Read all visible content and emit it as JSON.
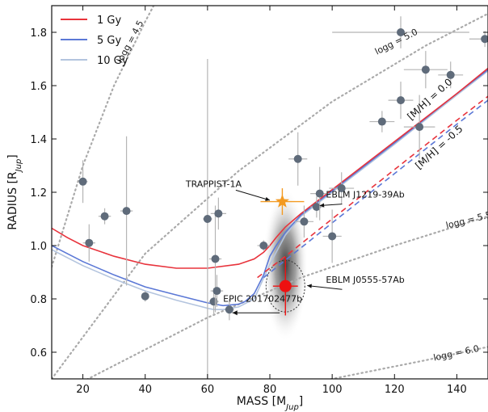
{
  "chart_data": {
    "type": "scatter",
    "xlabel": "MASS [M_Jup]",
    "ylabel": "RADIUS [R_Jup]",
    "xlim": [
      10,
      150
    ],
    "ylim": [
      0.5,
      1.9
    ],
    "xticks": [
      20,
      40,
      60,
      80,
      100,
      120,
      140
    ],
    "yticks": [
      0.6,
      0.8,
      1.0,
      1.2,
      1.4,
      1.6,
      1.8
    ],
    "grid": false,
    "legend_position": "top-left",
    "legend": [
      {
        "label": "1 Gy",
        "color": "#e8333c"
      },
      {
        "label": "5 Gy",
        "color": "#5b78d6"
      },
      {
        "label": "10 Gy",
        "color": "#b3c4de"
      }
    ],
    "series": [
      {
        "name": "1 Gy",
        "color": "#e8333c",
        "x": [
          10,
          15,
          20,
          30,
          40,
          50,
          60,
          70,
          75,
          78,
          80,
          82,
          85,
          90,
          100,
          120,
          140,
          150
        ],
        "y": [
          1.065,
          1.03,
          1.0,
          0.96,
          0.93,
          0.915,
          0.915,
          0.93,
          0.95,
          0.975,
          1.0,
          1.03,
          1.07,
          1.12,
          1.21,
          1.39,
          1.57,
          1.665
        ]
      },
      {
        "name": "5 Gy",
        "color": "#5b78d6",
        "x": [
          10,
          15,
          20,
          30,
          40,
          50,
          60,
          65,
          70,
          72,
          75,
          78,
          80,
          82,
          85,
          90,
          100,
          120,
          140,
          150
        ],
        "y": [
          1.0,
          0.97,
          0.94,
          0.89,
          0.845,
          0.815,
          0.785,
          0.775,
          0.78,
          0.79,
          0.82,
          0.89,
          0.96,
          1.0,
          1.05,
          1.115,
          1.205,
          1.385,
          1.57,
          1.66
        ]
      },
      {
        "name": "10 Gy",
        "color": "#b3c4de",
        "x": [
          10,
          15,
          20,
          30,
          40,
          50,
          60,
          62,
          65,
          70,
          75,
          80,
          85,
          90,
          100,
          120,
          140,
          150
        ],
        "y": [
          0.985,
          0.955,
          0.925,
          0.875,
          0.83,
          0.795,
          0.765,
          0.76,
          0.76,
          0.77,
          0.8,
          0.93,
          1.04,
          1.11,
          1.2,
          1.38,
          1.565,
          1.655
        ]
      }
    ],
    "dashed_series": [
      {
        "color": "#e8333c",
        "x": [
          76,
          85,
          100,
          120,
          140,
          150
        ],
        "y": [
          0.88,
          0.96,
          1.1,
          1.285,
          1.47,
          1.56
        ]
      },
      {
        "color": "#5b78d6",
        "x": [
          78,
          85,
          100,
          120,
          140,
          150
        ],
        "y": [
          0.88,
          0.945,
          1.085,
          1.27,
          1.455,
          1.545
        ]
      }
    ],
    "iso_gravity": [
      {
        "label": "logg = 4.5",
        "x": [
          10,
          20,
          30,
          40,
          45
        ],
        "y": [
          0.92,
          1.3,
          1.6,
          1.84,
          1.95
        ]
      },
      {
        "label": "logg = 5.0",
        "x": [
          10,
          40,
          70,
          100,
          130,
          150
        ],
        "y": [
          0.5,
          0.97,
          1.28,
          1.54,
          1.75,
          1.87
        ]
      },
      {
        "label": "logg = 5.5",
        "x": [
          20,
          60,
          90,
          120,
          150
        ],
        "y": [
          0.49,
          0.73,
          0.88,
          1.0,
          1.11
        ]
      },
      {
        "label": "logg = 6.0",
        "x": [
          65,
          100,
          130,
          150
        ],
        "y": [
          0.4,
          0.5,
          0.57,
          0.62
        ]
      }
    ],
    "points": [
      {
        "x": 20,
        "y": 1.24,
        "xerr": 1.5,
        "yerr": 0.08
      },
      {
        "x": 22,
        "y": 1.01,
        "xerr": 2,
        "yerr": 0.07
      },
      {
        "x": 27,
        "y": 1.11,
        "xerr": 2,
        "yerr": 0.03
      },
      {
        "x": 34,
        "y": 1.13,
        "xerr": 2,
        "yerr": 0.28
      },
      {
        "x": 40,
        "y": 0.81,
        "xerr": 1,
        "yerr": 0.02
      },
      {
        "x": 60,
        "y": 1.1,
        "xerr": 1.5,
        "yerr": 0.6
      },
      {
        "x": 62,
        "y": 0.79,
        "xerr": 1.5,
        "yerr": 0.05
      },
      {
        "x": 62.5,
        "y": 0.95,
        "xerr": 2,
        "yerr": 0.2
      },
      {
        "x": 63,
        "y": 0.83,
        "xerr": 2,
        "yerr": 0.06
      },
      {
        "x": 63.5,
        "y": 1.12,
        "xerr": 2.5,
        "yerr": 0.06
      },
      {
        "x": 67,
        "y": 0.76,
        "xerr": 1.5,
        "yerr": 0.04
      },
      {
        "x": 78,
        "y": 1.0,
        "xerr": 2,
        "yerr": 0.02
      },
      {
        "x": 89,
        "y": 1.325,
        "xerr": 3,
        "yerr": 0.1
      },
      {
        "x": 91,
        "y": 1.09,
        "xerr": 3,
        "yerr": 0.06
      },
      {
        "x": 95,
        "y": 1.145,
        "xerr": 2,
        "yerr": 0.04
      },
      {
        "x": 96,
        "y": 1.195,
        "xerr": 3,
        "yerr": 0.1
      },
      {
        "x": 100,
        "y": 1.035,
        "xerr": 3,
        "yerr": 0.1
      },
      {
        "x": 103,
        "y": 1.215,
        "xerr": 4,
        "yerr": 0.06
      },
      {
        "x": 116,
        "y": 1.465,
        "xerr": 4,
        "yerr": 0.04
      },
      {
        "x": 122,
        "y": 1.8,
        "xerr": 22,
        "yerr": 0.06
      },
      {
        "x": 122,
        "y": 1.545,
        "xerr": 4,
        "yerr": 0.07
      },
      {
        "x": 128,
        "y": 1.445,
        "xerr": 5,
        "yerr": 0.12
      },
      {
        "x": 130,
        "y": 1.66,
        "xerr": 7,
        "yerr": 0.07
      },
      {
        "x": 138,
        "y": 1.64,
        "xerr": 4,
        "yerr": 0.05
      },
      {
        "x": 149,
        "y": 1.775,
        "xerr": 5,
        "yerr": 0.03
      }
    ],
    "trappist": {
      "label": "TRAPPIST-1A",
      "x": 84,
      "y": 1.165,
      "xerr": 7,
      "yerr": 0.05,
      "color": "#f39a21"
    },
    "highlight": {
      "x": 85,
      "y": 0.848,
      "xerr": 4,
      "yerr": 0.11,
      "color": "#ee1111"
    },
    "annotations": [
      {
        "text": "TRAPPIST-1A",
        "tx": 53,
        "ty": 1.22,
        "ax": 80,
        "ay": 1.17,
        "anchor": "start"
      },
      {
        "text": "EBLM J1219-39Ab",
        "tx": 98,
        "ty": 1.18,
        "ax": 96,
        "ay": 1.15,
        "anchor": "start"
      },
      {
        "text": "EBLM J0555-57Ab",
        "tx": 98,
        "ty": 0.86,
        "ax": 92,
        "ay": 0.85,
        "anchor": "start"
      },
      {
        "text": "EPIC 201702477b",
        "tx": 65,
        "ty": 0.79,
        "ax": 68,
        "ay": 0.74,
        "anchor": "start"
      }
    ],
    "metallicity_labels": [
      {
        "text": "[M/H] = 0.0",
        "x": 132,
        "y": 1.54,
        "angle": -42
      },
      {
        "text": "[M/H] = -0.5",
        "x": 135,
        "y": 1.36,
        "angle": -42
      }
    ]
  }
}
